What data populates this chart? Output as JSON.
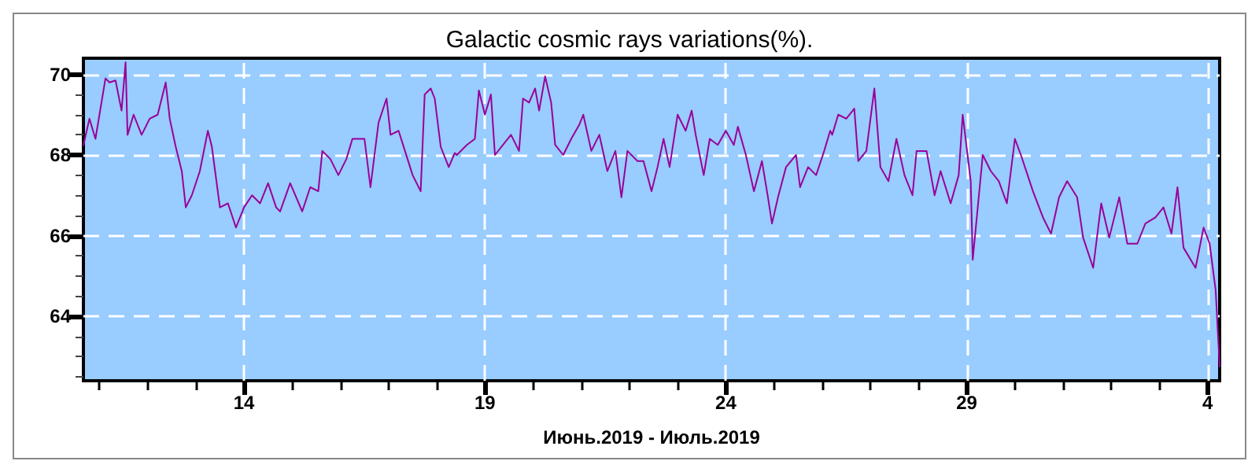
{
  "chart_data": {
    "type": "line",
    "title": "Galactic cosmic rays variations(%).",
    "xlabel": "Июнь.2019 - Июль.2019",
    "x": [
      "2019-06-10T16:00",
      "2019-06-10T19:00",
      "2019-06-10T22:00",
      "2019-06-11T00:00",
      "2019-06-11T03:00",
      "2019-06-11T05:00",
      "2019-06-11T08:00",
      "2019-06-11T11:00",
      "2019-06-11T13:00",
      "2019-06-11T14:00",
      "2019-06-11T17:00",
      "2019-06-11T21:00",
      "2019-06-12T01:00",
      "2019-06-12T05:00",
      "2019-06-12T09:00",
      "2019-06-12T11:00",
      "2019-06-12T14:00",
      "2019-06-12T17:00",
      "2019-06-12T19:00",
      "2019-06-12T22:00",
      "2019-06-13T02:00",
      "2019-06-13T06:00",
      "2019-06-13T08:00",
      "2019-06-13T12:00",
      "2019-06-13T16:00",
      "2019-06-13T20:00",
      "2019-06-14T00:00",
      "2019-06-14T04:00",
      "2019-06-14T08:00",
      "2019-06-14T12:00",
      "2019-06-14T16:00",
      "2019-06-14T18:00",
      "2019-06-14T23:00",
      "2019-06-15T05:00",
      "2019-06-15T09:00",
      "2019-06-15T13:00",
      "2019-06-15T15:00",
      "2019-06-15T19:00",
      "2019-06-15T23:00",
      "2019-06-16T03:00",
      "2019-06-16T06:00",
      "2019-06-16T12:00",
      "2019-06-16T15:00",
      "2019-06-16T19:00",
      "2019-06-16T23:00",
      "2019-06-17T01:00",
      "2019-06-17T05:00",
      "2019-06-17T12:00",
      "2019-06-17T16:00",
      "2019-06-17T18:00",
      "2019-06-17T21:00",
      "2019-06-17T23:00",
      "2019-06-18T02:00",
      "2019-06-18T06:00",
      "2019-06-18T09:00",
      "2019-06-18T10:00",
      "2019-06-18T15:00",
      "2019-06-18T19:00",
      "2019-06-18T21:00",
      "2019-06-19T00:00",
      "2019-06-19T03:00",
      "2019-06-19T05:00",
      "2019-06-19T09:00",
      "2019-06-19T13:00",
      "2019-06-19T17:00",
      "2019-06-19T19:00",
      "2019-06-19T22:00",
      "2019-06-20T01:00",
      "2019-06-20T03:00",
      "2019-06-20T06:00",
      "2019-06-20T09:00",
      "2019-06-20T11:00",
      "2019-06-20T15:00",
      "2019-06-20T19:00",
      "2019-06-20T23:00",
      "2019-06-21T01:00",
      "2019-06-21T05:00",
      "2019-06-21T09:00",
      "2019-06-21T13:00",
      "2019-06-21T17:00",
      "2019-06-21T20:00",
      "2019-06-21T23:00",
      "2019-06-22T04:00",
      "2019-06-22T07:00",
      "2019-06-22T11:00",
      "2019-06-22T14:00",
      "2019-06-22T17:00",
      "2019-06-22T20:00",
      "2019-06-23T00:00",
      "2019-06-23T04:00",
      "2019-06-23T07:00",
      "2019-06-23T09:00",
      "2019-06-23T13:00",
      "2019-06-23T16:00",
      "2019-06-23T20:00",
      "2019-06-24T00:00",
      "2019-06-24T04:00",
      "2019-06-24T06:00",
      "2019-06-24T10:00",
      "2019-06-24T14:00",
      "2019-06-24T18:00",
      "2019-06-24T21:00",
      "2019-06-24T23:00",
      "2019-06-25T02:00",
      "2019-06-25T06:00",
      "2019-06-25T11:00",
      "2019-06-25T13:00",
      "2019-06-25T17:00",
      "2019-06-25T21:00",
      "2019-06-26T01:00",
      "2019-06-26T04:00",
      "2019-06-26T05:00",
      "2019-06-26T08:00",
      "2019-06-26T12:00",
      "2019-06-26T16:00",
      "2019-06-26T18:00",
      "2019-06-26T22:00",
      "2019-06-27T02:00",
      "2019-06-27T05:00",
      "2019-06-27T09:00",
      "2019-06-27T13:00",
      "2019-06-27T17:00",
      "2019-06-27T21:00",
      "2019-06-27T23:00",
      "2019-06-28T04:00",
      "2019-06-28T08:00",
      "2019-06-28T11:00",
      "2019-06-28T16:00",
      "2019-06-28T20:00",
      "2019-06-28T22:00",
      "2019-06-29T02:00",
      "2019-06-29T03:00",
      "2019-06-29T08:00",
      "2019-06-29T12:00",
      "2019-06-29T16:00",
      "2019-06-29T20:00",
      "2019-06-30T00:00",
      "2019-06-30T03:00",
      "2019-06-30T09:00",
      "2019-06-30T14:00",
      "2019-06-30T18:00",
      "2019-06-30T22:00",
      "2019-07-01T02:00",
      "2019-07-01T07:00",
      "2019-07-01T10:00",
      "2019-07-01T15:00",
      "2019-07-01T19:00",
      "2019-07-01T23:00",
      "2019-07-02T04:00",
      "2019-07-02T08:00",
      "2019-07-02T13:00",
      "2019-07-02T17:00",
      "2019-07-02T22:00",
      "2019-07-03T02:00",
      "2019-07-03T06:00",
      "2019-07-03T09:00",
      "2019-07-03T12:00",
      "2019-07-03T18:00",
      "2019-07-03T22:00",
      "2019-07-04T01:00",
      "2019-07-04T04:00",
      "2019-07-04T06:00"
    ],
    "series": [
      {
        "color": "#990099",
        "values": [
          68.24,
          68.9,
          68.4,
          69.0,
          69.9,
          69.8,
          69.85,
          69.1,
          70.3,
          68.5,
          69.0,
          68.5,
          68.9,
          69.0,
          69.8,
          68.9,
          68.2,
          67.6,
          66.7,
          67.0,
          67.6,
          68.6,
          68.2,
          66.7,
          66.8,
          66.2,
          66.7,
          67.0,
          66.8,
          67.3,
          66.7,
          66.6,
          67.3,
          66.6,
          67.2,
          67.1,
          68.1,
          67.9,
          67.5,
          67.9,
          68.4,
          68.4,
          67.2,
          68.8,
          69.4,
          68.5,
          68.6,
          67.5,
          67.1,
          69.5,
          69.65,
          69.4,
          68.2,
          67.7,
          68.05,
          68.0,
          68.25,
          68.4,
          69.6,
          69.0,
          69.5,
          68.0,
          68.25,
          68.5,
          68.1,
          69.4,
          69.3,
          69.65,
          69.1,
          69.95,
          69.3,
          68.25,
          68.0,
          68.4,
          68.75,
          69.0,
          68.1,
          68.5,
          67.6,
          68.1,
          66.95,
          68.1,
          67.85,
          67.85,
          67.1,
          67.7,
          68.4,
          67.7,
          69.0,
          68.6,
          69.1,
          68.5,
          67.5,
          68.4,
          68.25,
          68.6,
          68.25,
          68.7,
          68.0,
          67.1,
          67.85,
          66.95,
          66.3,
          66.95,
          67.7,
          68.0,
          67.2,
          67.7,
          67.5,
          68.1,
          68.6,
          68.5,
          69.0,
          68.9,
          69.15,
          67.85,
          68.1,
          69.65,
          67.7,
          67.35,
          68.4,
          67.5,
          67.0,
          68.1,
          68.1,
          67.0,
          67.6,
          66.8,
          67.5,
          69.0,
          67.35,
          65.4,
          68.0,
          67.6,
          67.35,
          66.8,
          68.4,
          68.0,
          67.1,
          66.45,
          66.05,
          66.95,
          67.35,
          66.95,
          65.95,
          65.2,
          66.8,
          65.95,
          66.95,
          65.8,
          65.8,
          66.3,
          66.45,
          66.7,
          66.05,
          67.2,
          65.7,
          65.2,
          66.2,
          65.8,
          64.65,
          62.75
        ]
      }
    ],
    "xlim": [
      "2019-06-10T16:00",
      "2019-07-04T06:00"
    ],
    "xticks": [
      {
        "value": "2019-06-11",
        "label": null
      },
      {
        "value": "2019-06-12",
        "label": null
      },
      {
        "value": "2019-06-13",
        "label": null
      },
      {
        "value": "2019-06-14",
        "label": "14"
      },
      {
        "value": "2019-06-15",
        "label": null
      },
      {
        "value": "2019-06-16",
        "label": null
      },
      {
        "value": "2019-06-17",
        "label": null
      },
      {
        "value": "2019-06-18",
        "label": null
      },
      {
        "value": "2019-06-19",
        "label": "19"
      },
      {
        "value": "2019-06-20",
        "label": null
      },
      {
        "value": "2019-06-21",
        "label": null
      },
      {
        "value": "2019-06-22",
        "label": null
      },
      {
        "value": "2019-06-23",
        "label": null
      },
      {
        "value": "2019-06-24",
        "label": "24"
      },
      {
        "value": "2019-06-25",
        "label": null
      },
      {
        "value": "2019-06-26",
        "label": null
      },
      {
        "value": "2019-06-27",
        "label": null
      },
      {
        "value": "2019-06-28",
        "label": null
      },
      {
        "value": "2019-06-29",
        "label": "29"
      },
      {
        "value": "2019-06-30",
        "label": null
      },
      {
        "value": "2019-07-01",
        "label": null
      },
      {
        "value": "2019-07-02",
        "label": null
      },
      {
        "value": "2019-07-03",
        "label": null
      },
      {
        "value": "2019-07-04",
        "label": "4"
      }
    ],
    "ylim": [
      62.4,
      70.4
    ],
    "yticks": [
      {
        "value": 62.5,
        "label": null
      },
      {
        "value": 63,
        "label": null
      },
      {
        "value": 63.5,
        "label": null
      },
      64,
      {
        "value": 64.5,
        "label": null
      },
      {
        "value": 65,
        "label": null
      },
      {
        "value": 65.5,
        "label": null
      },
      66,
      {
        "value": 66.5,
        "label": null
      },
      {
        "value": 67,
        "label": null
      },
      {
        "value": 67.5,
        "label": null
      },
      68,
      {
        "value": 68.5,
        "label": null
      },
      {
        "value": 69,
        "label": null
      },
      {
        "value": 69.5,
        "label": null
      },
      70
    ],
    "grid": true,
    "line_style": "solid",
    "marker": "none"
  }
}
